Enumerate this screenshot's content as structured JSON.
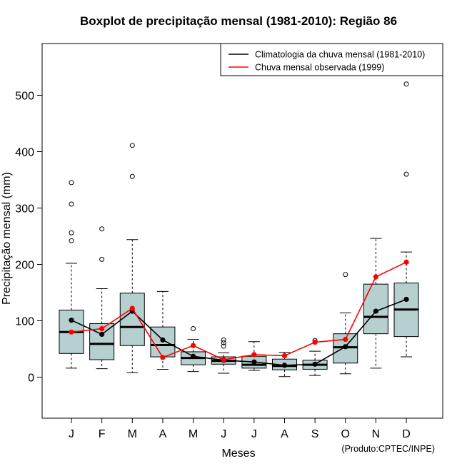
{
  "chart_data": {
    "type": "boxplot",
    "title": "Boxplot de precipitação mensal (1981-2010): Região 86",
    "xlabel": "Meses",
    "ylabel": "Precipitação mensal (mm)",
    "ylim": [
      -70,
      595
    ],
    "yticks": [
      0,
      100,
      200,
      300,
      400,
      500
    ],
    "credit": "(Produto:CPTEC/INPE)",
    "categories": [
      "J",
      "F",
      "M",
      "A",
      "M",
      "J",
      "J",
      "A",
      "S",
      "O",
      "N",
      "D"
    ],
    "box_color": "#b6cfcf",
    "boxes": [
      {
        "whisker_low": 16,
        "q1": 42,
        "median": 80,
        "q3": 119,
        "whisker_high": 202,
        "outliers": [
          242,
          256,
          307,
          345
        ]
      },
      {
        "whisker_low": 15,
        "q1": 31,
        "median": 59,
        "q3": 95,
        "whisker_high": 157,
        "outliers": [
          209,
          263
        ]
      },
      {
        "whisker_low": 8,
        "q1": 56,
        "median": 89,
        "q3": 149,
        "whisker_high": 244,
        "outliers": [
          356,
          411
        ]
      },
      {
        "whisker_low": 14,
        "q1": 36,
        "median": 57,
        "q3": 89,
        "whisker_high": 152,
        "outliers": []
      },
      {
        "whisker_low": 10,
        "q1": 22,
        "median": 34,
        "q3": 45,
        "whisker_high": 67,
        "outliers": [
          86
        ]
      },
      {
        "whisker_low": 7,
        "q1": 23,
        "median": 29,
        "q3": 36,
        "whisker_high": 43,
        "outliers": [
          55,
          61,
          66
        ]
      },
      {
        "whisker_low": 12,
        "q1": 16,
        "median": 22,
        "q3": 37,
        "whisker_high": 63,
        "outliers": []
      },
      {
        "whisker_low": 1,
        "q1": 13,
        "median": 20,
        "q3": 32,
        "whisker_high": 44,
        "outliers": []
      },
      {
        "whisker_low": 3,
        "q1": 14,
        "median": 22,
        "q3": 30,
        "whisker_high": 46,
        "outliers": [
          65
        ]
      },
      {
        "whisker_low": 6,
        "q1": 25,
        "median": 53,
        "q3": 77,
        "whisker_high": 114,
        "outliers": [
          182
        ]
      },
      {
        "whisker_low": 16,
        "q1": 77,
        "median": 107,
        "q3": 165,
        "whisker_high": 246,
        "outliers": []
      },
      {
        "whisker_low": 36,
        "q1": 72,
        "median": 120,
        "q3": 167,
        "whisker_high": 222,
        "outliers": [
          360,
          520
        ]
      }
    ],
    "series": [
      {
        "name": "Climatologia da chuva mensal (1981-2010)",
        "color": "#000000",
        "values": [
          101,
          76,
          117,
          66,
          37,
          30,
          27,
          21,
          23,
          54,
          117,
          138
        ]
      },
      {
        "name": "Chuva mensal observada (1999)",
        "color": "#ff0000",
        "values": [
          80,
          86,
          122,
          35,
          56,
          31,
          40,
          38,
          62,
          67,
          178,
          204
        ]
      }
    ],
    "legend_position": "top-right"
  }
}
